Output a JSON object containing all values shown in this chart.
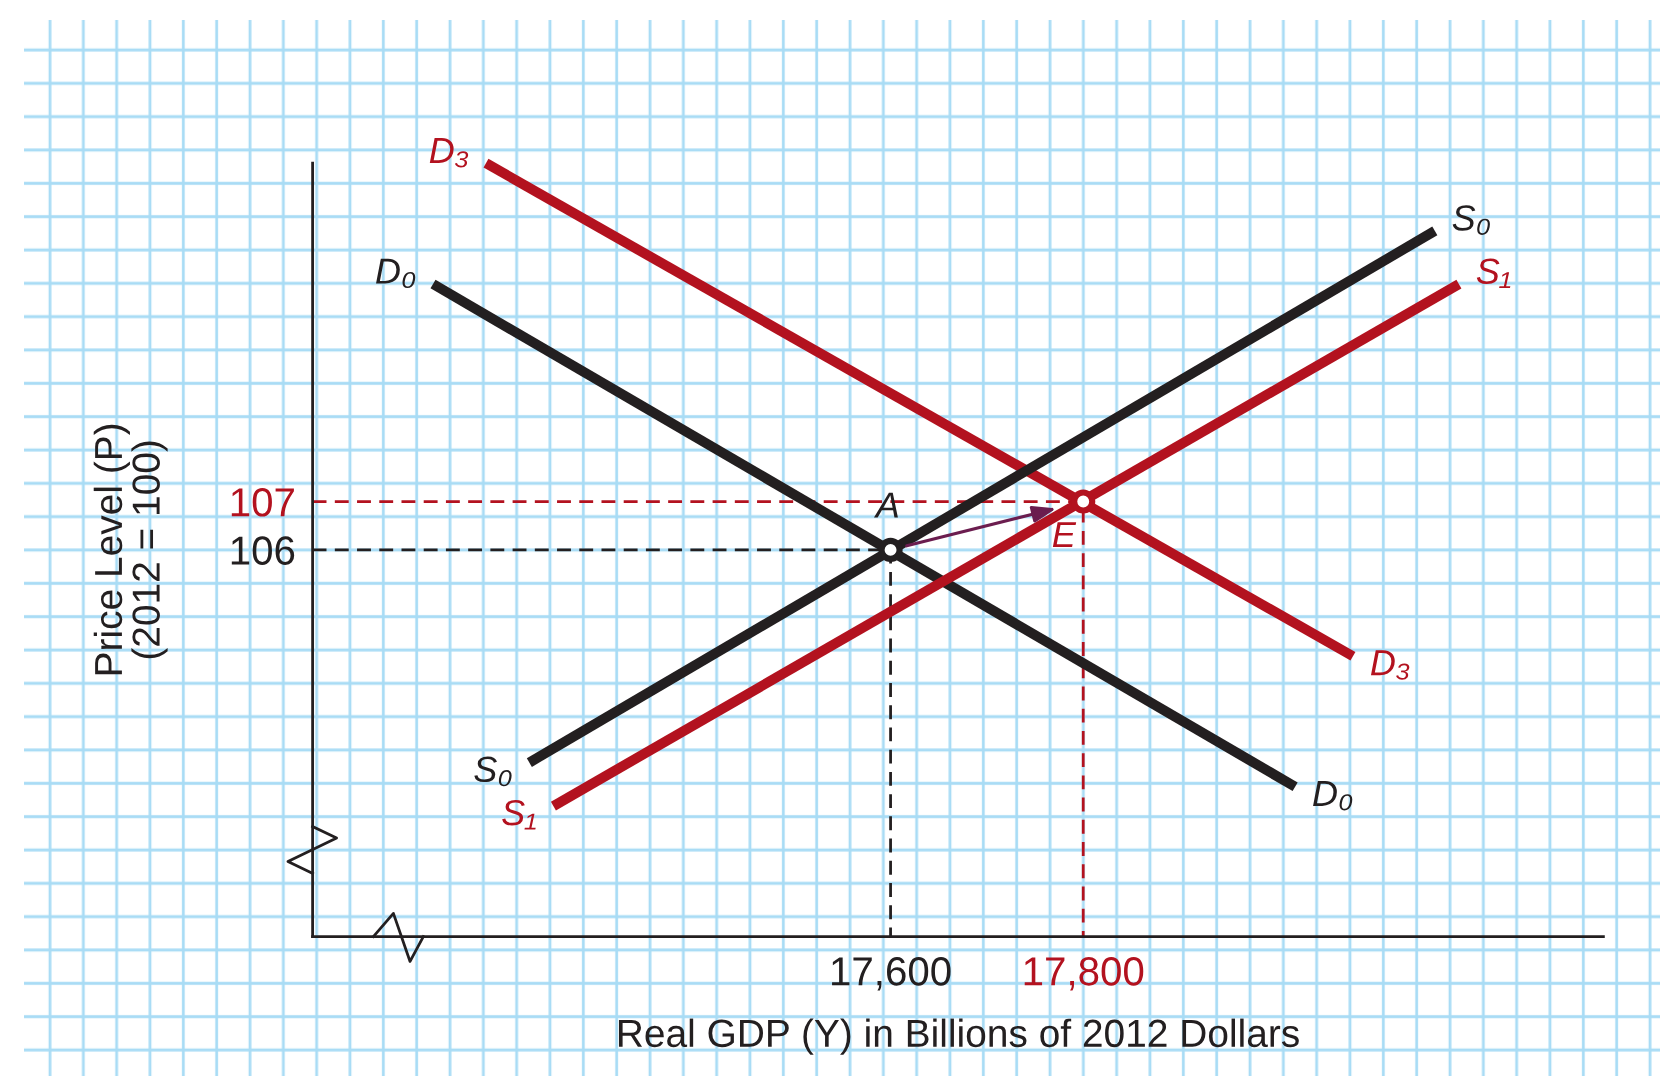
{
  "chart_data": {
    "type": "line",
    "xlabel": "Real GDP (Y) in Billions of 2012 Dollars",
    "ylabel": "Price Level (P)\n(2012 = 100)",
    "xlim": [
      17000,
      18340
    ],
    "ylim": [
      98,
      114
    ],
    "xticks": [
      {
        "value": 17600,
        "label": "17,600"
      },
      {
        "value": 17800,
        "label": "17,800"
      }
    ],
    "yticks": [
      106,
      107
    ],
    "series": [
      {
        "color": "#231f20",
        "line_style": "dashed",
        "x": [
          17000,
          17600,
          17600
        ],
        "values": [
          106,
          106,
          98
        ]
      },
      {
        "color": "#b3121f",
        "line_style": "dashed",
        "x": [
          17000,
          17800,
          17800
        ],
        "values": [
          107,
          107,
          98
        ]
      },
      {
        "name": "D₃",
        "color": "#b3121f",
        "x": [
          17180,
          18080
        ],
        "values": [
          114.0,
          103.8
        ]
      },
      {
        "name": "D₀",
        "color": "#231f20",
        "x": [
          17125,
          18020
        ],
        "values": [
          111.5,
          101.1
        ]
      },
      {
        "name": "S₀",
        "color": "#231f20",
        "x": [
          17225,
          18165
        ],
        "values": [
          101.6,
          112.6
        ]
      },
      {
        "name": "S₁",
        "color": "#b3121f",
        "x": [
          17250,
          18190
        ],
        "values": [
          100.7,
          111.5
        ]
      },
      {
        "type": "scatter",
        "marker": "circle",
        "x": [
          17600,
          17800
        ],
        "values": [
          106,
          107
        ],
        "colors": [
          "#231f20",
          "#b3121f"
        ]
      }
    ],
    "annotations": [
      {
        "text": "A",
        "x": 17600,
        "y": 106
      },
      {
        "text": "E",
        "x": 17800,
        "y": 107
      }
    ]
  }
}
